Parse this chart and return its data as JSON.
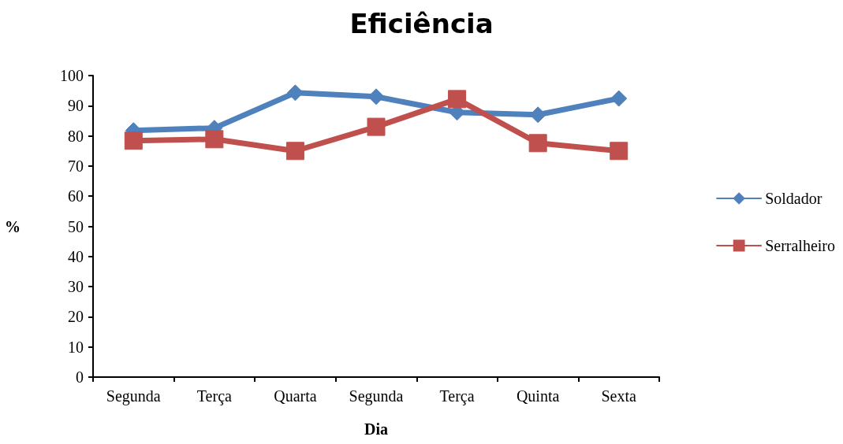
{
  "chart_data": {
    "type": "line",
    "title": "Eficiência",
    "xlabel": "Dia",
    "ylabel": "%",
    "categories": [
      "Segunda",
      "Terça",
      "Quarta",
      "Segunda",
      "Terça",
      "Quinta",
      "Sexta"
    ],
    "series": [
      {
        "name": "Soldador",
        "color": "#4f81bd",
        "marker": "diamond",
        "values": [
          81.8,
          82.6,
          94.3,
          93,
          87.8,
          87,
          92.4
        ]
      },
      {
        "name": "Serralheiro",
        "color": "#c0504d",
        "marker": "square",
        "values": [
          78.4,
          78.9,
          75,
          83,
          92.2,
          77.6,
          75
        ]
      }
    ],
    "ylim": [
      0,
      100
    ],
    "yticks": [
      0,
      10,
      20,
      30,
      40,
      50,
      60,
      70,
      80,
      90,
      100
    ],
    "grid": false,
    "legend": "right"
  }
}
